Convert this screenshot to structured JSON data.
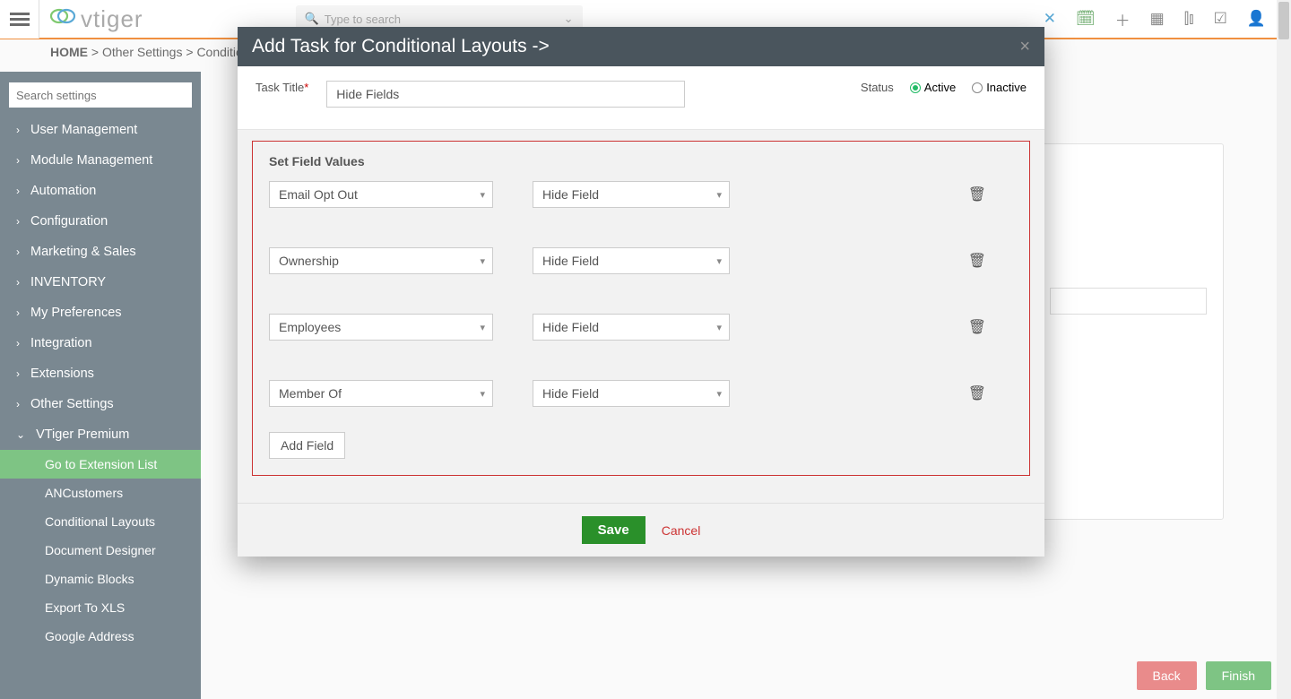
{
  "topbar": {
    "search_placeholder": "Type to search",
    "logo_text": "vtiger"
  },
  "breadcrumb": {
    "home": "HOME",
    "sep": ">",
    "l1": "Other Settings",
    "l2": "Conditiona"
  },
  "sidebar": {
    "search_placeholder": "Search settings",
    "items": [
      {
        "label": "User Management"
      },
      {
        "label": "Module Management"
      },
      {
        "label": "Automation"
      },
      {
        "label": "Configuration"
      },
      {
        "label": "Marketing & Sales"
      },
      {
        "label": "INVENTORY"
      },
      {
        "label": "My Preferences"
      },
      {
        "label": "Integration"
      },
      {
        "label": "Extensions"
      },
      {
        "label": "Other Settings"
      }
    ],
    "expanded": {
      "label": "VTiger Premium"
    },
    "subs": [
      {
        "label": "Go to Extension List",
        "active": true
      },
      {
        "label": "ANCustomers"
      },
      {
        "label": "Conditional Layouts"
      },
      {
        "label": "Document Designer"
      },
      {
        "label": "Dynamic Blocks"
      },
      {
        "label": "Export To XLS"
      },
      {
        "label": "Google Address"
      }
    ]
  },
  "footer": {
    "back": "Back",
    "finish": "Finish"
  },
  "modal": {
    "title": "Add Task for Conditional Layouts ->",
    "task_title_label": "Task Title",
    "task_title_value": "Hide Fields",
    "status_label": "Status",
    "active_label": "Active",
    "inactive_label": "Inactive",
    "section_title": "Set Field Values",
    "rows": [
      {
        "field": "Email Opt Out",
        "action": "Hide Field"
      },
      {
        "field": "Ownership",
        "action": "Hide Field"
      },
      {
        "field": "Employees",
        "action": "Hide Field"
      },
      {
        "field": "Member Of",
        "action": "Hide Field"
      }
    ],
    "add_field": "Add Field",
    "save": "Save",
    "cancel": "Cancel"
  },
  "colors": {
    "sidebar_bg": "#7a8891",
    "sidebar_active": "#7ec484",
    "accent_border": "#f09040",
    "modal_header": "#4a555d",
    "red_box_border": "#c33",
    "save_btn": "#2a902a",
    "cancel_text": "#c33",
    "back_btn": "#e98b8b",
    "finish_btn": "#7ec484"
  }
}
